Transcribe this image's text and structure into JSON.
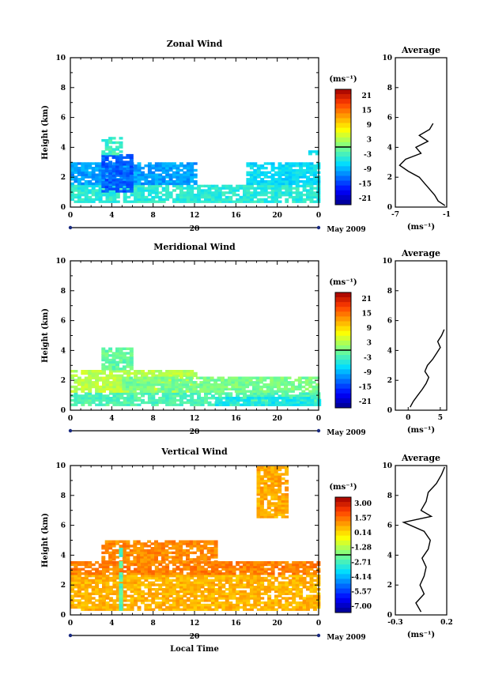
{
  "panels": [
    {
      "title": "Zonal Wind",
      "ylabel": "Height (km)",
      "ylim": [
        0,
        10
      ],
      "yticks": [
        "0",
        "2",
        "4",
        "6",
        "8",
        "10"
      ],
      "xticks": [
        "0",
        "4",
        "8",
        "12",
        "16",
        "20",
        "0"
      ],
      "date_label": "20",
      "month_label": "May 2009",
      "colorbar": {
        "unit": "(ms⁻¹)",
        "ticks": [
          "21",
          "15",
          "9",
          "3",
          "-3",
          "-9",
          "-15",
          "-21"
        ]
      },
      "avg": {
        "title": "Average",
        "unit": "(ms⁻¹)",
        "xticks": [
          "-7",
          "-1"
        ],
        "yticks": [
          "0",
          "2",
          "4",
          "6",
          "8",
          "10"
        ]
      }
    },
    {
      "title": "Meridional Wind",
      "ylabel": "Height (km)",
      "ylim": [
        0,
        10
      ],
      "yticks": [
        "0",
        "2",
        "4",
        "6",
        "8",
        "10"
      ],
      "xticks": [
        "0",
        "4",
        "8",
        "12",
        "16",
        "20",
        "0"
      ],
      "date_label": "20",
      "month_label": "May 2009",
      "colorbar": {
        "unit": "(ms⁻¹)",
        "ticks": [
          "21",
          "15",
          "9",
          "3",
          "-3",
          "-9",
          "-15",
          "-21"
        ]
      },
      "avg": {
        "title": "Average",
        "unit": "(ms⁻¹)",
        "xticks": [
          "0",
          "5"
        ],
        "yticks": [
          "0",
          "2",
          "4",
          "6",
          "8",
          "10"
        ]
      }
    },
    {
      "title": "Vertical Wind",
      "ylabel": "Height (km)",
      "ylim": [
        0,
        10
      ],
      "yticks": [
        "0",
        "2",
        "4",
        "6",
        "8",
        "10"
      ],
      "xticks": [
        "0",
        "4",
        "8",
        "12",
        "16",
        "20",
        "0"
      ],
      "date_label": "20",
      "month_label": "May 2009",
      "xlabel": "Local Time",
      "colorbar": {
        "unit": "(ms⁻¹)",
        "ticks": [
          "3.00",
          "1.57",
          "0.14",
          "-1.28",
          "-2.71",
          "-4.14",
          "-5.57",
          "-7.00"
        ]
      },
      "avg": {
        "title": "Average",
        "unit": "(ms⁻¹)",
        "xticks": [
          "-0.3",
          "0.2"
        ],
        "yticks": [
          "0",
          "2",
          "4",
          "6",
          "8",
          "10"
        ]
      }
    }
  ],
  "chart_data": [
    {
      "type": "heatmap",
      "title": "Zonal Wind",
      "ylabel": "Height (km)",
      "xlim_hours": [
        0,
        24
      ],
      "ylim": [
        0,
        10
      ],
      "clim": [
        -21,
        21
      ],
      "regions": [
        {
          "t0": 0,
          "t1": 24,
          "h0": 0.3,
          "h1": 1.5,
          "value": -4
        },
        {
          "t0": 0,
          "t1": 12,
          "h0": 1.5,
          "h1": 3.0,
          "value": -9
        },
        {
          "t0": 3,
          "t1": 6,
          "h0": 1.0,
          "h1": 3.5,
          "value": -12
        },
        {
          "t0": 3,
          "t1": 5,
          "h0": 3.5,
          "h1": 4.7,
          "value": -3
        },
        {
          "t0": 17,
          "t1": 24,
          "h0": 1.5,
          "h1": 3.0,
          "value": -6
        },
        {
          "t0": 23,
          "t1": 24,
          "h0": 3.5,
          "h1": 3.8,
          "value": -5
        }
      ],
      "average_profile": {
        "xlim": [
          -7,
          -1
        ],
        "height": [
          0.1,
          0.4,
          0.8,
          1.2,
          1.6,
          2.0,
          2.4,
          2.8,
          3.2,
          3.6,
          4.0,
          4.4,
          4.8,
          5.2,
          5.6
        ],
        "value": [
          -1.2,
          -2.0,
          -2.4,
          -3.0,
          -3.6,
          -4.2,
          -5.5,
          -6.5,
          -5.8,
          -4.0,
          -4.6,
          -3.2,
          -4.2,
          -3.0,
          -2.6
        ]
      }
    },
    {
      "type": "heatmap",
      "title": "Meridional Wind",
      "ylabel": "Height (km)",
      "xlim_hours": [
        0,
        24
      ],
      "ylim": [
        0,
        10
      ],
      "clim": [
        -21,
        21
      ],
      "regions": [
        {
          "t0": 0,
          "t1": 24,
          "h0": 0.3,
          "h1": 1.2,
          "value": -2
        },
        {
          "t0": 0,
          "t1": 12,
          "h0": 1.2,
          "h1": 2.7,
          "value": 3
        },
        {
          "t0": 5,
          "t1": 24,
          "h0": 1.2,
          "h1": 2.2,
          "value": 0
        },
        {
          "t0": 3,
          "t1": 6,
          "h0": 2.7,
          "h1": 4.2,
          "value": -1
        },
        {
          "t0": 14,
          "t1": 24,
          "h0": 0.3,
          "h1": 0.8,
          "value": -5
        }
      ],
      "average_profile": {
        "xlim": [
          -2,
          6
        ],
        "height": [
          0.2,
          0.6,
          1.0,
          1.4,
          1.8,
          2.2,
          2.6,
          3.0,
          3.4,
          3.8,
          4.2,
          4.6,
          5.0,
          5.4
        ],
        "value": [
          0.3,
          0.8,
          1.5,
          2.2,
          2.8,
          3.2,
          2.6,
          3.0,
          3.8,
          4.4,
          5.0,
          4.6,
          5.2,
          5.6
        ]
      }
    },
    {
      "type": "heatmap",
      "title": "Vertical Wind",
      "ylabel": "Height (km)",
      "xlabel": "Local Time",
      "xlim_hours": [
        0,
        24
      ],
      "ylim": [
        0,
        10
      ],
      "clim": [
        -7.0,
        3.0
      ],
      "regions": [
        {
          "t0": 0,
          "t1": 24,
          "h0": 0.3,
          "h1": 2.7,
          "value": 0.4
        },
        {
          "t0": 0,
          "t1": 24,
          "h0": 2.7,
          "h1": 3.5,
          "value": 1.0
        },
        {
          "t0": 3,
          "t1": 14,
          "h0": 3.5,
          "h1": 5.0,
          "value": 0.9
        },
        {
          "t0": 4.7,
          "t1": 5.0,
          "h0": 0.3,
          "h1": 4.5,
          "value": -2.5
        },
        {
          "t0": 18,
          "t1": 21,
          "h0": 6.5,
          "h1": 9.9,
          "value": 0.5
        }
      ],
      "average_profile": {
        "xlim": [
          -0.3,
          0.2
        ],
        "height": [
          0.2,
          0.8,
          1.4,
          2.0,
          2.6,
          3.2,
          3.8,
          4.4,
          5.0,
          5.6,
          6.2,
          6.6,
          7.0,
          7.6,
          8.2,
          8.8,
          9.4,
          9.9
        ],
        "value": [
          -0.05,
          -0.1,
          -0.02,
          -0.06,
          -0.02,
          0.0,
          -0.04,
          0.02,
          0.04,
          -0.02,
          -0.22,
          0.05,
          -0.05,
          0.0,
          0.02,
          0.1,
          0.15,
          0.18
        ]
      }
    }
  ]
}
